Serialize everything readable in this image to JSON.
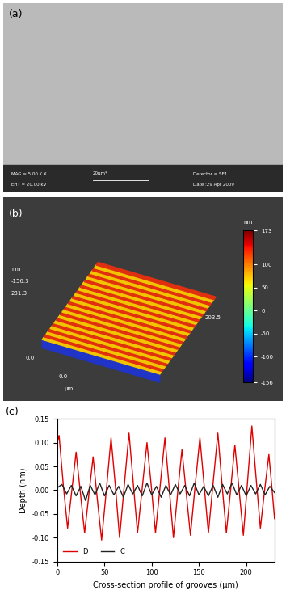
{
  "panel_labels": [
    "(a)",
    "(b)",
    "(c)"
  ],
  "sem_image": {
    "info": [
      "MAG = 5.00 K X",
      "EHT = 20.00 kV"
    ],
    "scale_bar": "20µm*",
    "detector": "Detector = SE1",
    "date": "Date :29 Apr 2009"
  },
  "afm_image": {
    "z_unit": "nm",
    "z_min": "-156.3",
    "z_max": "231.3",
    "origin_y": "0.0",
    "origin_x": "0.0",
    "x_unit": "µm",
    "x_max": "203.5",
    "colorbar": {
      "label": "nm",
      "range": [
        -156,
        173
      ],
      "ticks": [
        173,
        100,
        50,
        0,
        -50,
        -100,
        -156
      ]
    }
  },
  "chart_data": {
    "type": "line",
    "xlabel": "Cross-section profile of grooves (µm)",
    "ylabel": "Depth (nm)",
    "xlim": [
      0,
      230
    ],
    "xticks": [
      0,
      50,
      100,
      150,
      200
    ],
    "ylim": [
      -0.15,
      0.15
    ],
    "yticks": [
      -0.15,
      {
        "value": -0.1,
        "label": "-0.10"
      },
      -0.05,
      {
        "value": 0,
        "label": "0.00"
      },
      0.05,
      {
        "value": 0.1,
        "label": "0.10"
      },
      0.15
    ],
    "grid": false,
    "legend": "lower left",
    "series": [
      {
        "name": "D",
        "color": "#e00000",
        "line_style": "solid",
        "x": [
          0,
          2,
          6.5,
          11,
          15.5,
          20,
          24.5,
          29,
          33.5,
          38,
          42.5,
          47,
          52,
          57,
          61.5,
          66,
          71,
          76,
          80.5,
          85,
          90,
          95,
          99.5,
          104,
          109,
          114,
          118.5,
          123,
          127.5,
          132,
          136.5,
          141,
          146,
          151,
          155.5,
          160,
          165,
          170,
          174.5,
          179,
          183.5,
          188,
          192.5,
          197,
          201.5,
          206,
          210.5,
          215,
          219.5,
          224,
          227,
          230
        ],
        "values": [
          0.1,
          0.115,
          0.01,
          -0.08,
          0.0,
          0.08,
          -0.005,
          -0.09,
          -0.01,
          0.07,
          -0.02,
          -0.105,
          0.0,
          0.11,
          0.01,
          -0.1,
          0.01,
          0.12,
          0.015,
          -0.09,
          0.005,
          0.1,
          0.01,
          -0.09,
          0.01,
          0.11,
          0.005,
          -0.1,
          -0.005,
          0.085,
          -0.005,
          -0.095,
          0.01,
          0.11,
          0.01,
          -0.09,
          0.015,
          0.12,
          0.01,
          -0.09,
          0.0,
          0.095,
          0.0,
          -0.095,
          0.02,
          0.135,
          0.025,
          -0.08,
          0.0,
          0.075,
          0.01,
          -0.06
        ]
      },
      {
        "name": "C",
        "color": "#222222",
        "line_style": "solid",
        "x": [
          0,
          5,
          10,
          15,
          20,
          25,
          30,
          35,
          40,
          45,
          50,
          55,
          60,
          65,
          70,
          75,
          80,
          85,
          90,
          95,
          100,
          105,
          110,
          115,
          120,
          125,
          130,
          135,
          140,
          145,
          150,
          155,
          160,
          165,
          170,
          175,
          180,
          185,
          190,
          195,
          200,
          205,
          210,
          215,
          220,
          225,
          230
        ],
        "values": [
          0.005,
          0.012,
          -0.008,
          0.01,
          -0.012,
          0.008,
          -0.022,
          0.01,
          -0.01,
          0.015,
          -0.012,
          0.01,
          -0.01,
          0.008,
          -0.015,
          0.012,
          -0.008,
          0.01,
          -0.012,
          0.015,
          -0.01,
          0.008,
          -0.015,
          0.01,
          -0.01,
          0.012,
          -0.008,
          0.01,
          -0.012,
          0.015,
          -0.01,
          0.008,
          -0.012,
          0.01,
          -0.015,
          0.012,
          -0.008,
          0.015,
          -0.01,
          0.01,
          -0.012,
          0.01,
          -0.008,
          0.012,
          -0.01,
          0.008,
          -0.005
        ]
      }
    ]
  }
}
